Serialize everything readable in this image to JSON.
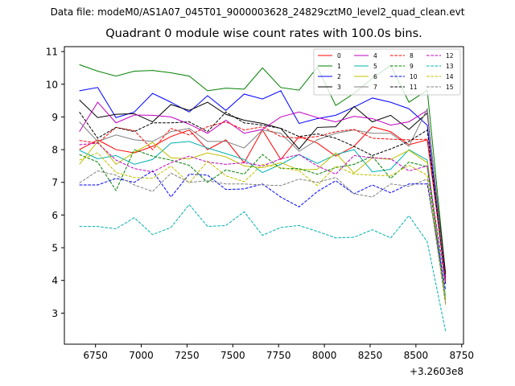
{
  "figure": {
    "suptitle": "Data file: modeM0/AS1A07_045T01_9000003628_24829cztM0_level2_quad_clean.evt"
  },
  "chart_data": {
    "type": "line",
    "title": "Quadrant 0 module wise count rates with 100.0s bins.",
    "xlabel": "",
    "ylabel": "",
    "x_offset_label": "+3.2603e8",
    "xlim": [
      6580,
      8760
    ],
    "ylim": [
      2.05,
      11.15
    ],
    "xticks": [
      6750,
      7000,
      7250,
      7500,
      7750,
      8000,
      8250,
      8500,
      8750
    ],
    "yticks": [
      3,
      4,
      5,
      6,
      7,
      8,
      9,
      10,
      11
    ],
    "x": [
      6662,
      6762,
      6862,
      6962,
      7062,
      7162,
      7262,
      7362,
      7462,
      7562,
      7662,
      7762,
      7862,
      7962,
      8062,
      8162,
      8262,
      8362,
      8462,
      8562,
      8662
    ],
    "legend_location": "upper right",
    "legend_columns": 4,
    "series": [
      {
        "name": "0",
        "color": "#ff0000",
        "style": "solid",
        "values": [
          8.0,
          8.3,
          8.0,
          7.9,
          8.1,
          8.4,
          8.6,
          8.0,
          8.3,
          7.6,
          8.6,
          7.7,
          8.4,
          8.2,
          7.8,
          8.1,
          8.7,
          8.55,
          8.15,
          8.3,
          4.1
        ]
      },
      {
        "name": "1",
        "color": "#008000",
        "style": "solid",
        "values": [
          10.6,
          10.4,
          10.25,
          10.4,
          10.42,
          10.35,
          10.25,
          9.8,
          9.88,
          9.85,
          10.5,
          9.9,
          9.82,
          10.52,
          9.35,
          9.72,
          10.18,
          10.58,
          9.45,
          9.82,
          4.2
        ]
      },
      {
        "name": "2",
        "color": "#0000ff",
        "style": "solid",
        "values": [
          9.8,
          9.9,
          8.98,
          9.15,
          9.72,
          9.45,
          9.15,
          9.65,
          9.2,
          9.7,
          9.55,
          9.8,
          8.8,
          8.95,
          9.05,
          9.3,
          9.58,
          9.45,
          9.25,
          8.75,
          4.1
        ]
      },
      {
        "name": "3",
        "color": "#000000",
        "style": "solid",
        "values": [
          9.52,
          8.98,
          9.08,
          9.1,
          8.85,
          9.38,
          9.2,
          9.45,
          9.08,
          8.9,
          8.8,
          8.65,
          8.02,
          8.68,
          8.7,
          9.32,
          8.85,
          9.05,
          8.62,
          9.12,
          4.2
        ]
      },
      {
        "name": "4",
        "color": "#c000c0",
        "style": "solid",
        "values": [
          8.55,
          9.45,
          8.82,
          9.06,
          9.05,
          9.0,
          8.78,
          8.5,
          8.9,
          8.5,
          8.62,
          9.0,
          9.15,
          8.98,
          8.85,
          9.02,
          8.95,
          8.75,
          8.85,
          9.2,
          4.0
        ]
      },
      {
        "name": "5",
        "color": "#00b0b0",
        "style": "solid",
        "values": [
          7.98,
          7.72,
          7.82,
          7.55,
          7.7,
          8.2,
          8.25,
          8.05,
          7.88,
          7.7,
          7.3,
          7.55,
          7.85,
          7.58,
          7.85,
          8.0,
          7.32,
          7.4,
          8.0,
          7.68,
          3.5
        ]
      },
      {
        "name": "6",
        "color": "#c0c000",
        "style": "solid",
        "values": [
          7.55,
          8.25,
          7.55,
          7.92,
          8.22,
          7.75,
          7.72,
          7.9,
          7.78,
          7.5,
          7.45,
          7.6,
          7.38,
          7.4,
          7.9,
          7.28,
          7.75,
          7.7,
          7.98,
          7.6,
          3.4
        ]
      },
      {
        "name": "7",
        "color": "#808080",
        "style": "solid",
        "values": [
          8.85,
          8.25,
          8.45,
          8.3,
          8.25,
          8.55,
          8.65,
          8.25,
          8.25,
          8.05,
          8.6,
          8.5,
          7.95,
          8.3,
          8.5,
          8.6,
          8.5,
          8.5,
          8.1,
          9.25,
          3.9
        ]
      },
      {
        "name": "8",
        "color": "#ff0000",
        "style": "dashed",
        "values": [
          8.28,
          8.2,
          8.68,
          8.58,
          8.0,
          8.65,
          8.45,
          8.7,
          8.85,
          8.6,
          8.7,
          8.4,
          8.35,
          8.4,
          8.55,
          8.62,
          8.35,
          8.32,
          8.3,
          8.32,
          4.0
        ]
      },
      {
        "name": "9",
        "color": "#008000",
        "style": "dashed",
        "values": [
          7.85,
          7.62,
          6.75,
          8.0,
          7.8,
          7.68,
          7.52,
          7.0,
          7.38,
          7.25,
          7.85,
          7.42,
          7.42,
          7.25,
          7.45,
          7.55,
          7.8,
          7.12,
          7.62,
          7.48,
          3.3
        ]
      },
      {
        "name": "10",
        "color": "#0000ff",
        "style": "dashed",
        "values": [
          6.92,
          6.92,
          7.12,
          7.0,
          7.35,
          6.55,
          7.25,
          7.22,
          6.78,
          6.8,
          6.95,
          6.55,
          6.25,
          6.72,
          7.05,
          6.65,
          6.92,
          6.68,
          6.95,
          6.95,
          3.7
        ]
      },
      {
        "name": "11",
        "color": "#000000",
        "style": "dashed",
        "values": [
          9.15,
          8.35,
          8.68,
          8.55,
          8.82,
          8.82,
          8.85,
          8.55,
          9.15,
          8.82,
          8.75,
          8.65,
          8.4,
          8.48,
          8.35,
          8.1,
          7.82,
          8.02,
          8.25,
          8.6,
          3.9
        ]
      },
      {
        "name": "12",
        "color": "#c000c0",
        "style": "dashed",
        "values": [
          8.15,
          8.2,
          7.68,
          7.42,
          7.32,
          7.6,
          7.8,
          7.62,
          7.55,
          7.6,
          7.5,
          7.72,
          7.85,
          7.5,
          7.25,
          7.82,
          7.75,
          7.72,
          7.35,
          7.5,
          3.9
        ]
      },
      {
        "name": "13",
        "color": "#00b0b0",
        "style": "dashed",
        "values": [
          5.65,
          5.65,
          5.58,
          5.92,
          5.4,
          5.62,
          6.32,
          5.65,
          5.68,
          6.1,
          5.38,
          5.62,
          5.68,
          5.5,
          5.3,
          5.32,
          5.55,
          5.3,
          5.98,
          5.18,
          2.45
        ]
      },
      {
        "name": "14",
        "color": "#c0c000",
        "style": "dashed",
        "values": [
          7.68,
          7.9,
          7.3,
          7.15,
          7.12,
          7.5,
          6.98,
          7.65,
          7.2,
          7.02,
          7.55,
          7.45,
          7.35,
          6.9,
          7.5,
          7.25,
          7.22,
          7.2,
          7.52,
          7.22,
          3.25
        ]
      },
      {
        "name": "15",
        "color": "#808080",
        "style": "dashed",
        "values": [
          6.98,
          7.35,
          7.22,
          6.92,
          6.72,
          7.28,
          7.0,
          7.05,
          6.95,
          6.95,
          6.92,
          6.9,
          7.1,
          7.0,
          7.15,
          6.65,
          6.55,
          6.95,
          6.88,
          7.1,
          3.3
        ]
      }
    ]
  }
}
